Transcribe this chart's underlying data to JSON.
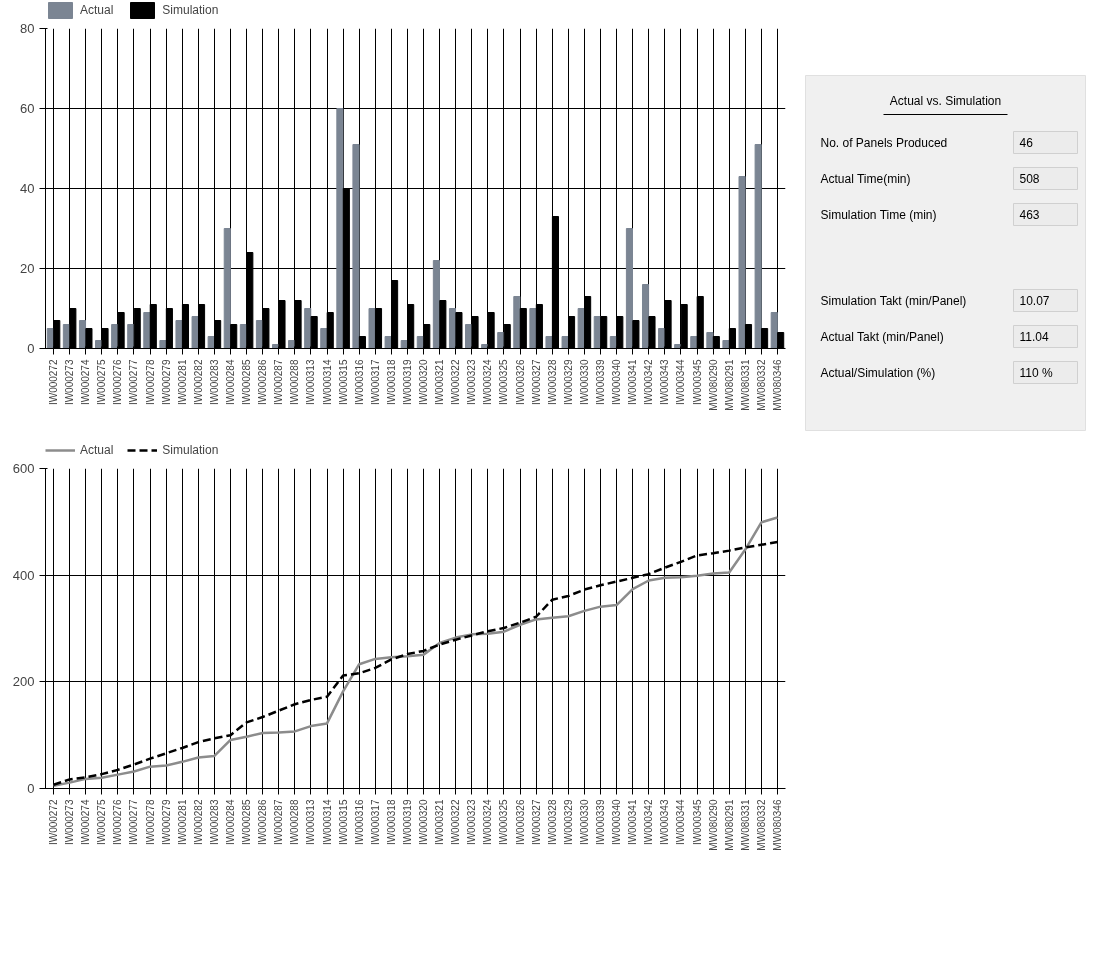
{
  "chart_data": [
    {
      "type": "bar",
      "categories": [
        "IW000272",
        "IW000273",
        "IW000274",
        "IW000275",
        "IW000276",
        "IW000277",
        "IW000278",
        "IW000279",
        "IW000281",
        "IW000282",
        "IW000283",
        "IW000284",
        "IW000285",
        "IW000286",
        "IW000287",
        "IW000288",
        "IW000313",
        "IW000314",
        "IW000315",
        "IW000316",
        "IW000317",
        "IW000318",
        "IW000319",
        "IW000320",
        "IW000321",
        "IW000322",
        "IW000323",
        "IW000324",
        "IW000325",
        "IW000326",
        "IW000327",
        "IW000328",
        "IW000329",
        "IW000330",
        "IW000339",
        "IW000340",
        "IW000341",
        "IW000342",
        "IW000343",
        "IW000344",
        "IW000345",
        "MW080290",
        "MW080291",
        "MW080331",
        "MW080332",
        "MW080346"
      ],
      "series": [
        {
          "name": "Actual",
          "color": "#7b8593",
          "values": [
            5,
            6,
            7,
            2,
            6,
            6,
            9,
            2,
            7,
            8,
            3,
            30,
            6,
            7,
            1,
            2,
            10,
            5,
            60,
            51,
            10,
            3,
            2,
            3,
            22,
            10,
            6,
            1,
            4,
            13,
            10,
            3,
            3,
            10,
            8,
            3,
            30,
            16,
            5,
            1,
            3,
            4,
            2,
            43,
            51,
            9
          ]
        },
        {
          "name": "Simulation",
          "color": "#000000",
          "values": [
            7,
            10,
            5,
            5,
            9,
            10,
            11,
            10,
            11,
            11,
            7,
            6,
            24,
            10,
            12,
            12,
            8,
            9,
            40,
            3,
            10,
            17,
            11,
            6,
            12,
            9,
            8,
            9,
            6,
            10,
            11,
            33,
            8,
            13,
            8,
            8,
            7,
            8,
            12,
            11,
            13,
            3,
            5,
            6,
            5,
            4
          ]
        }
      ],
      "ylim": [
        0,
        80
      ],
      "yticks": [
        0,
        20,
        40,
        60,
        80
      ],
      "grid": true,
      "legend": "top left"
    },
    {
      "type": "other",
      "title": "Actual vs. Simulation",
      "annotations": [
        "No. of Panels Produced",
        "46",
        "Actual Time(min)",
        "508",
        "Simulation Time (min)",
        "463",
        "Simulation Takt (min/Panel)",
        "10.07",
        "Actual Takt (min/Panel)",
        "11.04",
        "Actual/Simulation (%)",
        "110 %"
      ]
    },
    {
      "type": "line",
      "categories": [
        "IW000272",
        "IW000273",
        "IW000274",
        "IW000275",
        "IW000276",
        "IW000277",
        "IW000278",
        "IW000279",
        "IW000281",
        "IW000282",
        "IW000283",
        "IW000284",
        "IW000285",
        "IW000286",
        "IW000287",
        "IW000288",
        "IW000313",
        "IW000314",
        "IW000315",
        "IW000316",
        "IW000317",
        "IW000318",
        "IW000319",
        "IW000320",
        "IW000321",
        "IW000322",
        "IW000323",
        "IW000324",
        "IW000325",
        "IW000326",
        "IW000327",
        "IW000328",
        "IW000329",
        "IW000330",
        "IW000339",
        "IW000340",
        "IW000341",
        "IW000342",
        "IW000343",
        "IW000344",
        "IW000345",
        "MW080290",
        "MW080291",
        "MW080331",
        "MW080332",
        "MW080346"
      ],
      "series": [
        {
          "name": "Actual",
          "color": "#8c8c8c",
          "line_style": "solid",
          "values": [
            5,
            11,
            18,
            20,
            26,
            32,
            41,
            43,
            50,
            58,
            61,
            91,
            97,
            104,
            105,
            107,
            117,
            122,
            182,
            233,
            243,
            246,
            248,
            251,
            273,
            283,
            289,
            290,
            294,
            307,
            317,
            320,
            323,
            333,
            341,
            344,
            374,
            390,
            395,
            396,
            399,
            403,
            405,
            448,
            499,
            508
          ]
        },
        {
          "name": "Simulation",
          "color": "#000000",
          "line_style": "dashed",
          "values": [
            7,
            17,
            21,
            27,
            35,
            45,
            56,
            66,
            76,
            87,
            94,
            100,
            124,
            134,
            146,
            158,
            166,
            172,
            212,
            216,
            226,
            242,
            252,
            258,
            270,
            279,
            287,
            295,
            301,
            311,
            322,
            354,
            361,
            373,
            381,
            388,
            395,
            402,
            414,
            425,
            437,
            441,
            446,
            452,
            457,
            462
          ]
        }
      ],
      "ylim": [
        0,
        600
      ],
      "yticks": [
        0,
        200,
        400,
        600
      ],
      "grid": true,
      "legend": "top left"
    }
  ]
}
